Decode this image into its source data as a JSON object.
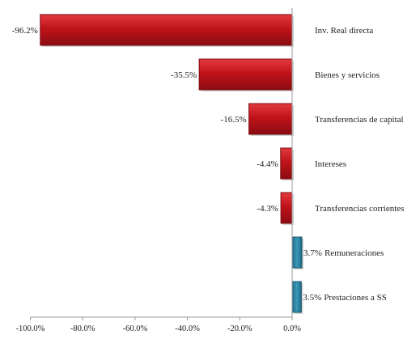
{
  "chart_data": {
    "type": "bar",
    "orientation": "horizontal",
    "title": "",
    "xlabel": "",
    "ylabel": "",
    "xlim": [
      -100,
      0
    ],
    "x_ticks": [
      "-100.0%",
      "-80.0%",
      "-60.0%",
      "-40.0%",
      "-20.0%",
      "0.0%"
    ],
    "grid": false,
    "legend": "none",
    "categories": [
      "Inv. Real directa",
      "Bienes y servicios",
      "Transferencias de capital",
      "Intereses",
      "Transferencias corrientes",
      "Remuneraciones",
      "Prestaciones a SS"
    ],
    "values": [
      -96.2,
      -35.5,
      -16.5,
      -4.4,
      -4.3,
      3.7,
      3.5
    ],
    "value_labels": [
      "-96.2%",
      "-35.5%",
      "-16.5%",
      "-4.4%",
      "-4.3%",
      "3.7%",
      "3.5%"
    ],
    "colors": {
      "negative": "#c0131a",
      "negative_dark": "#7d0b10",
      "positive": "#2f87a5",
      "positive_dark": "#1c5a70"
    }
  }
}
